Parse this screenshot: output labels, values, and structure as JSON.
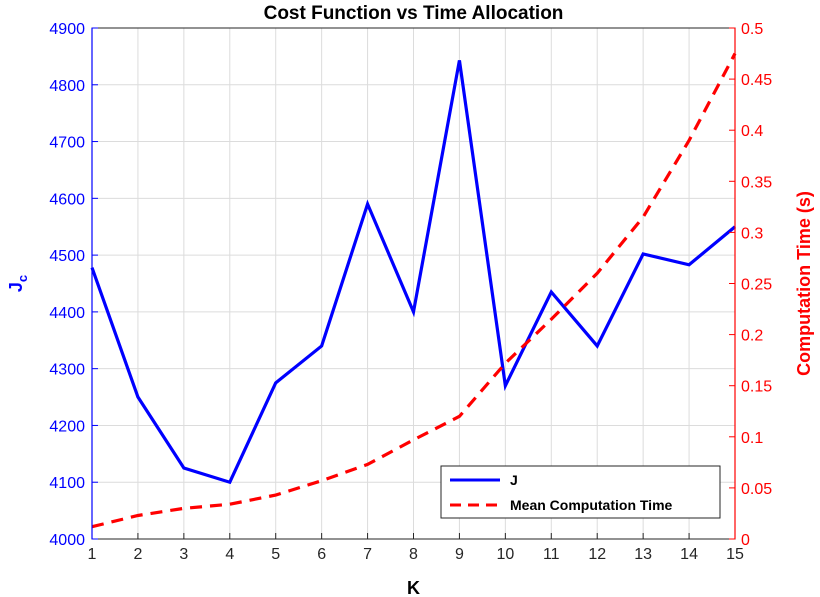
{
  "chart_data": {
    "type": "line",
    "title": "Cost Function vs Time Allocation",
    "xlabel": "K",
    "ylabel_left_main": "J",
    "ylabel_left_sub": "c",
    "ylabel_right": "Computation Time (s)",
    "x": [
      1,
      2,
      3,
      4,
      5,
      6,
      7,
      8,
      9,
      10,
      11,
      12,
      13,
      14,
      15
    ],
    "xlim": [
      1,
      15
    ],
    "ylim_left": [
      4000,
      4900
    ],
    "ylim_right": [
      0,
      0.5
    ],
    "xticks": [
      "1",
      "2",
      "3",
      "4",
      "5",
      "6",
      "7",
      "8",
      "9",
      "10",
      "11",
      "12",
      "13",
      "14",
      "15"
    ],
    "yticks_left": [
      "4000",
      "4100",
      "4200",
      "4300",
      "4400",
      "4500",
      "4600",
      "4700",
      "4800",
      "4900"
    ],
    "yticks_right": [
      "0",
      "0.05",
      "0.1",
      "0.15",
      "0.2",
      "0.25",
      "0.3",
      "0.35",
      "0.4",
      "0.45",
      "0.5"
    ],
    "grid": true,
    "legend_position": "bottom-right",
    "series": [
      {
        "name": "J",
        "axis": "left",
        "style": "solid",
        "color": "#0000ff",
        "values": [
          4478,
          4250,
          4125,
          4100,
          4275,
          4340,
          4590,
          4400,
          4843,
          4270,
          4435,
          4340,
          4502,
          4483,
          4550
        ]
      },
      {
        "name": "Mean Computation Time",
        "axis": "right",
        "style": "dashed",
        "color": "#ff0000",
        "values": [
          0.012,
          0.023,
          0.03,
          0.034,
          0.043,
          0.057,
          0.073,
          0.097,
          0.12,
          0.172,
          0.215,
          0.26,
          0.315,
          0.39,
          0.475
        ]
      }
    ],
    "colors": {
      "left_axis": "#0000ff",
      "right_axis": "#ff0000",
      "frame": "#262626",
      "grid": "#dcdcdc"
    }
  }
}
